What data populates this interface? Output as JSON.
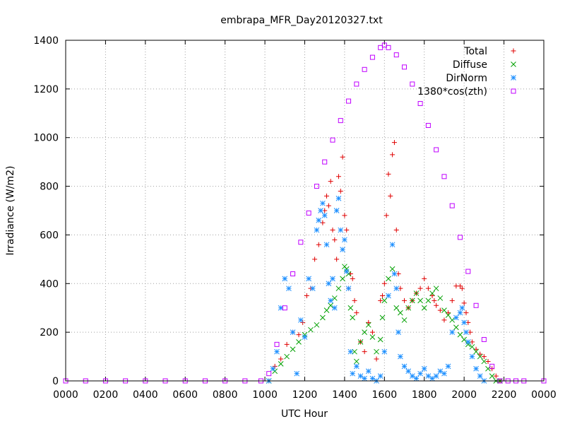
{
  "chart_data": {
    "type": "scatter",
    "title": "embrapa_MFR_Day20120327.txt",
    "xlabel": "UTC Hour",
    "ylabel": "Irradiance (W/m2)",
    "xlim": [
      0,
      24
    ],
    "ylim": [
      0,
      1400
    ],
    "x_ticks": [
      {
        "value": 0,
        "label": "0000"
      },
      {
        "value": 2,
        "label": "0200"
      },
      {
        "value": 4,
        "label": "0400"
      },
      {
        "value": 6,
        "label": "0600"
      },
      {
        "value": 8,
        "label": "0800"
      },
      {
        "value": 10,
        "label": "1000"
      },
      {
        "value": 12,
        "label": "1200"
      },
      {
        "value": 14,
        "label": "1400"
      },
      {
        "value": 16,
        "label": "1600"
      },
      {
        "value": 18,
        "label": "1800"
      },
      {
        "value": 20,
        "label": "2000"
      },
      {
        "value": 22,
        "label": "2200"
      },
      {
        "value": 24,
        "label": "0000"
      }
    ],
    "y_ticks": [
      {
        "value": 0,
        "label": "0"
      },
      {
        "value": 200,
        "label": "200"
      },
      {
        "value": 400,
        "label": "400"
      },
      {
        "value": 600,
        "label": "600"
      },
      {
        "value": 800,
        "label": "800"
      },
      {
        "value": 1000,
        "label": "1000"
      },
      {
        "value": 1200,
        "label": "1200"
      },
      {
        "value": 1400,
        "label": "1400"
      }
    ],
    "grid": true,
    "legend_position": "top-right",
    "series": [
      {
        "name": "Total",
        "marker": "plus",
        "color": "#e00000",
        "x": [
          10.2,
          10.5,
          10.8,
          11.1,
          11.4,
          11.7,
          11.9,
          12.1,
          12.3,
          12.5,
          12.7,
          12.9,
          13.0,
          13.1,
          13.2,
          13.3,
          13.4,
          13.5,
          13.6,
          13.7,
          13.8,
          13.9,
          14.0,
          14.1,
          14.2,
          14.3,
          14.4,
          14.5,
          14.6,
          14.8,
          15.0,
          15.2,
          15.4,
          15.6,
          15.8,
          15.9,
          16.0,
          16.1,
          16.2,
          16.3,
          16.4,
          16.5,
          16.6,
          16.7,
          16.8,
          17.0,
          17.2,
          17.4,
          17.6,
          17.8,
          18.0,
          18.2,
          18.4,
          18.5,
          18.6,
          18.8,
          19.0,
          19.2,
          19.4,
          19.6,
          19.8,
          19.9,
          20.0,
          20.1,
          20.2,
          20.3,
          20.4,
          20.6,
          20.8,
          21.0,
          21.2,
          21.4,
          21.6,
          21.8
        ],
        "y": [
          0,
          60,
          90,
          150,
          200,
          190,
          240,
          350,
          380,
          500,
          560,
          650,
          700,
          760,
          720,
          820,
          620,
          580,
          500,
          840,
          780,
          920,
          680,
          620,
          380,
          440,
          420,
          330,
          280,
          160,
          120,
          240,
          200,
          90,
          330,
          350,
          400,
          680,
          850,
          760,
          930,
          980,
          620,
          440,
          380,
          330,
          300,
          330,
          360,
          380,
          420,
          380,
          350,
          330,
          310,
          290,
          250,
          280,
          330,
          390,
          390,
          380,
          320,
          280,
          240,
          200,
          160,
          130,
          110,
          100,
          80,
          50,
          20,
          0
        ]
      },
      {
        "name": "Diffuse",
        "marker": "cross",
        "color": "#00a000",
        "x": [
          10.2,
          10.5,
          10.8,
          11.1,
          11.4,
          11.7,
          12.0,
          12.3,
          12.6,
          12.9,
          13.1,
          13.3,
          13.5,
          13.7,
          13.9,
          14.0,
          14.1,
          14.2,
          14.3,
          14.4,
          14.5,
          14.6,
          14.8,
          15.0,
          15.2,
          15.4,
          15.6,
          15.8,
          15.9,
          16.0,
          16.2,
          16.4,
          16.6,
          16.8,
          17.0,
          17.2,
          17.4,
          17.6,
          17.8,
          18.0,
          18.2,
          18.4,
          18.6,
          18.8,
          19.0,
          19.2,
          19.4,
          19.6,
          19.8,
          20.0,
          20.2,
          20.4,
          20.6,
          20.8,
          21.0,
          21.2,
          21.4,
          21.6,
          21.8
        ],
        "y": [
          0,
          40,
          70,
          100,
          130,
          160,
          190,
          210,
          230,
          260,
          290,
          310,
          340,
          380,
          420,
          470,
          460,
          440,
          300,
          260,
          120,
          80,
          160,
          200,
          230,
          180,
          120,
          170,
          260,
          330,
          420,
          460,
          300,
          280,
          250,
          300,
          330,
          360,
          330,
          300,
          330,
          360,
          380,
          340,
          290,
          270,
          250,
          220,
          190,
          170,
          150,
          140,
          120,
          100,
          80,
          50,
          20,
          0,
          0
        ]
      },
      {
        "name": "DirNorm",
        "marker": "star",
        "color": "#1e90ff",
        "x": [
          10.2,
          10.4,
          10.6,
          10.8,
          11.0,
          11.2,
          11.4,
          11.6,
          11.8,
          12.0,
          12.2,
          12.4,
          12.6,
          12.7,
          12.8,
          12.9,
          13.0,
          13.1,
          13.2,
          13.3,
          13.4,
          13.5,
          13.6,
          13.7,
          13.8,
          13.9,
          14.0,
          14.1,
          14.2,
          14.3,
          14.4,
          14.6,
          14.8,
          15.0,
          15.2,
          15.4,
          15.6,
          15.8,
          16.0,
          16.2,
          16.4,
          16.5,
          16.6,
          16.7,
          16.8,
          17.0,
          17.2,
          17.4,
          17.6,
          17.8,
          18.0,
          18.2,
          18.4,
          18.6,
          18.8,
          19.0,
          19.2,
          19.4,
          19.6,
          19.8,
          19.9,
          20.0,
          20.1,
          20.2,
          20.4,
          20.6,
          20.8,
          21.0
        ],
        "y": [
          0,
          50,
          120,
          300,
          420,
          380,
          200,
          30,
          250,
          180,
          420,
          380,
          620,
          660,
          700,
          730,
          680,
          560,
          400,
          330,
          420,
          300,
          700,
          750,
          620,
          540,
          580,
          450,
          380,
          120,
          30,
          60,
          20,
          10,
          40,
          10,
          0,
          20,
          120,
          350,
          560,
          440,
          380,
          200,
          100,
          60,
          40,
          20,
          10,
          30,
          50,
          20,
          10,
          20,
          40,
          30,
          60,
          200,
          260,
          280,
          300,
          240,
          200,
          160,
          100,
          50,
          20,
          0
        ]
      },
      {
        "name": "1380*cos(zth)",
        "marker": "square",
        "color": "#c000ff",
        "x": [
          0,
          1,
          2,
          3,
          4,
          5,
          6,
          7,
          8,
          9,
          9.8,
          10.2,
          10.6,
          11.0,
          11.4,
          11.8,
          12.2,
          12.6,
          13.0,
          13.4,
          13.8,
          14.2,
          14.6,
          15.0,
          15.4,
          15.8,
          16.0,
          16.2,
          16.6,
          17.0,
          17.4,
          17.8,
          18.2,
          18.6,
          19.0,
          19.4,
          19.8,
          20.2,
          20.6,
          21.0,
          21.4,
          21.8,
          22.2,
          22.6,
          23,
          24
        ],
        "y": [
          0,
          0,
          0,
          0,
          0,
          0,
          0,
          0,
          0,
          0,
          0,
          30,
          150,
          300,
          440,
          570,
          690,
          800,
          900,
          990,
          1070,
          1150,
          1220,
          1280,
          1330,
          1370,
          1380,
          1370,
          1340,
          1290,
          1220,
          1140,
          1050,
          950,
          840,
          720,
          590,
          450,
          310,
          170,
          60,
          0,
          0,
          0,
          0,
          0
        ]
      }
    ]
  }
}
